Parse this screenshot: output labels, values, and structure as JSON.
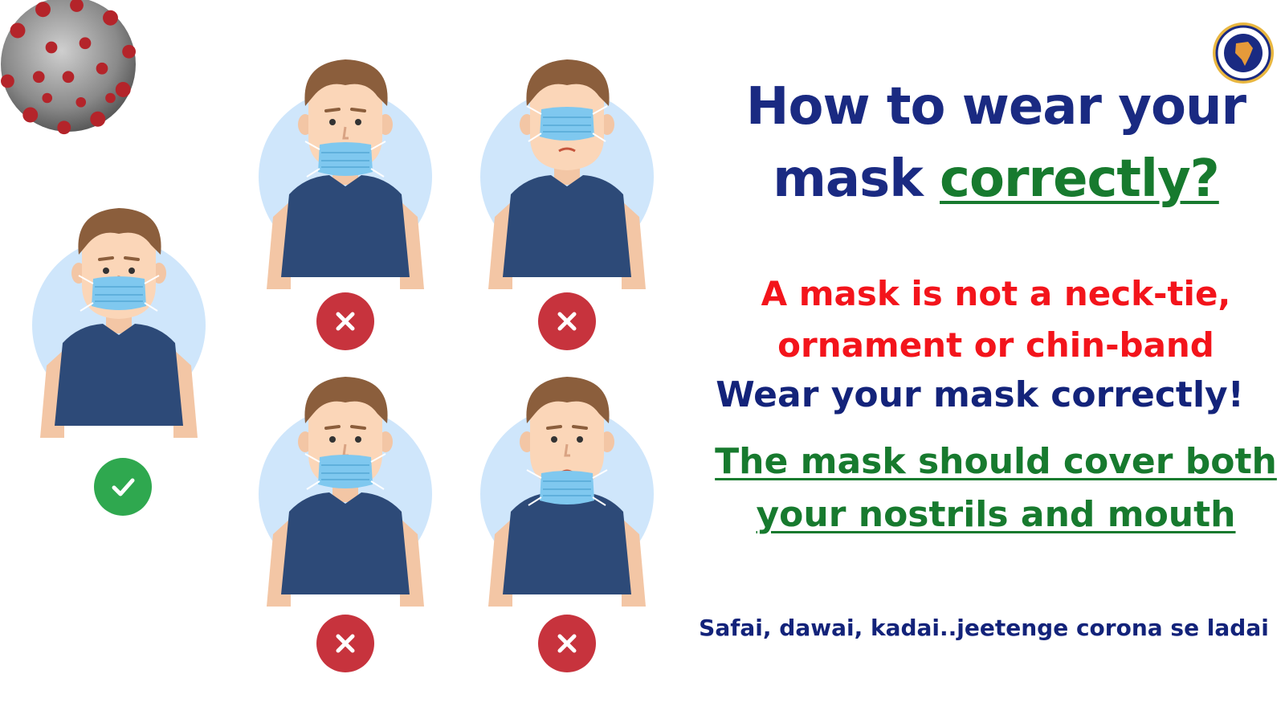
{
  "title": {
    "line1": "How to wear your",
    "line2_prefix": "mask",
    "line2_highlight": "correctly? "
  },
  "messages": {
    "not_tie_line1": "A mask is not a neck-tie,",
    "not_tie_line2": "ornament or chin-band",
    "wear_correctly": "Wear your mask correctly!",
    "cover_line1": "The mask should cover both",
    "cover_line2": "your nostrils and mouth"
  },
  "slogan": "Safai, dawai, kadai..jeetenge corona se ladai",
  "figures": [
    {
      "id": "correct",
      "mask_position": "covers-nose-and-mouth",
      "status": "correct"
    },
    {
      "id": "chin",
      "mask_position": "under-chin",
      "status": "wrong"
    },
    {
      "id": "eyes",
      "mask_position": "over-eyes",
      "status": "wrong"
    },
    {
      "id": "mouth-only",
      "mask_position": "mouth-only",
      "status": "wrong"
    },
    {
      "id": "lower",
      "mask_position": "below-mouth",
      "status": "wrong"
    }
  ],
  "icons": {
    "correct": "check-icon",
    "wrong": "cross-icon",
    "virus": "coronavirus-icon",
    "emblem": "emblem-icon"
  },
  "colors": {
    "title_blue": "#1a2a82",
    "alert_red": "#f3141b",
    "accent_green": "#177a2e",
    "check_green": "#2fa84f",
    "cross_red": "#c7333d",
    "shirt": "#2d4a78",
    "circle_bg": "#cfe6fb",
    "mask": "#7fc8ef"
  }
}
